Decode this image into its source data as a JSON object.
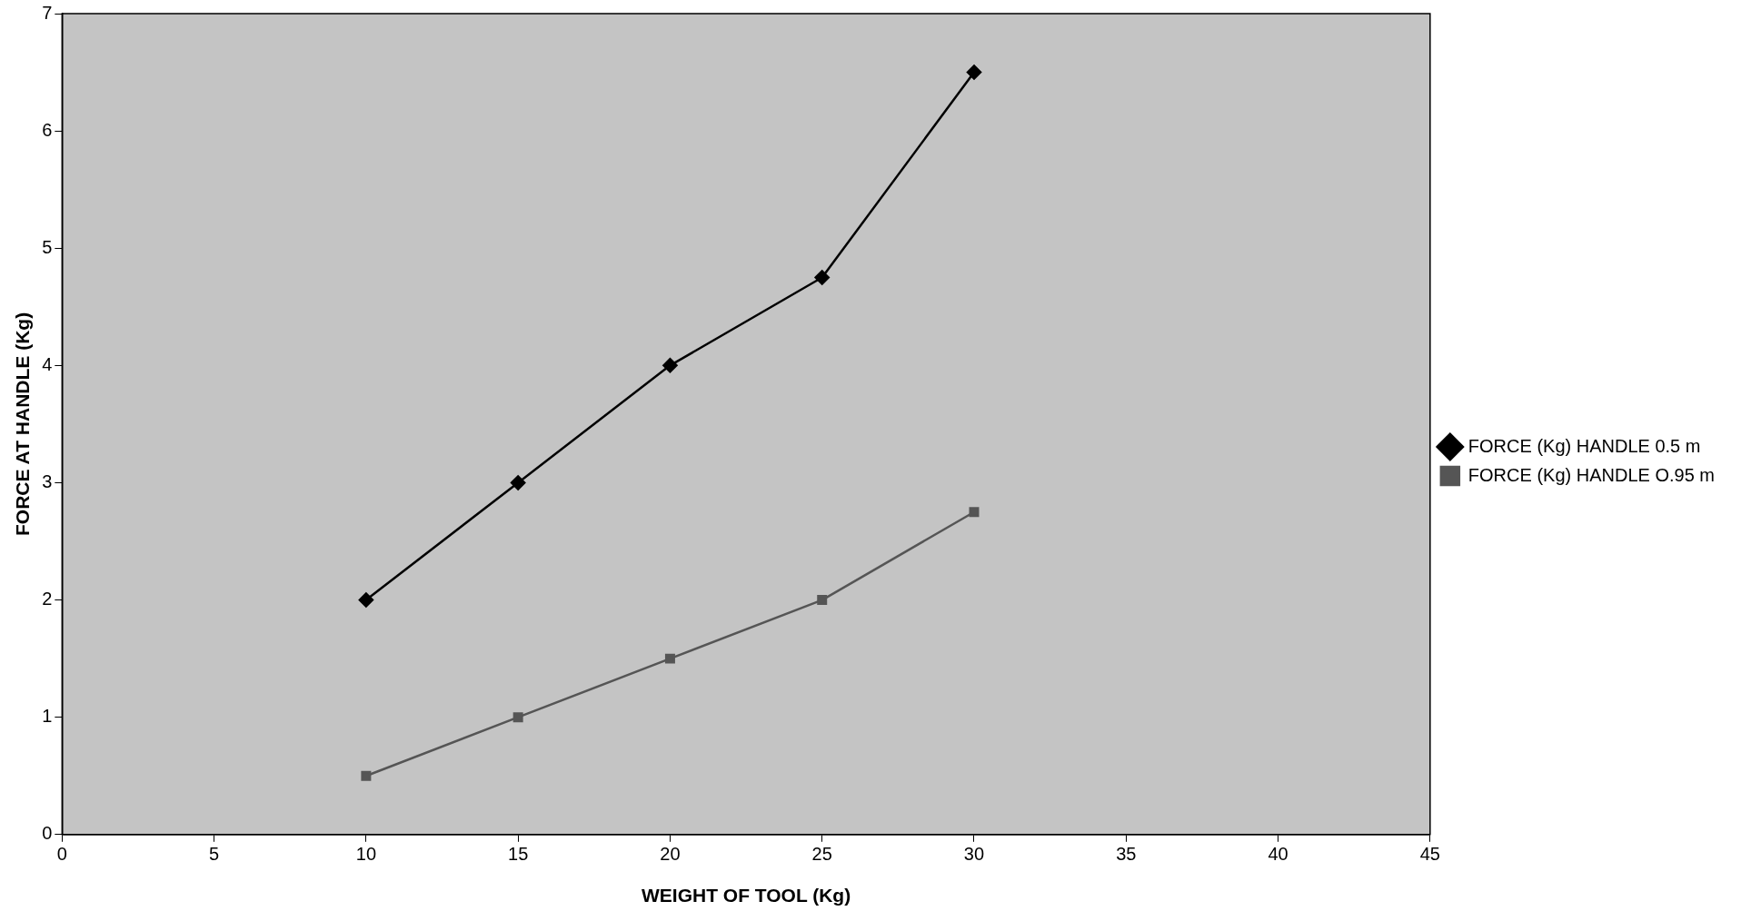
{
  "chart_data": {
    "type": "line",
    "xlabel": "WEIGHT OF TOOL (Kg)",
    "ylabel": "FORCE AT HANDLE (Kg)",
    "x": [
      10,
      15,
      20,
      25,
      30
    ],
    "series": [
      {
        "name": "FORCE (Kg) HANDLE 0.5 m",
        "color": "#000000",
        "marker": "diamond",
        "values": [
          2,
          3,
          4,
          4.75,
          6.5
        ]
      },
      {
        "name": "FORCE (Kg) HANDLE O.95 m",
        "color": "#555555",
        "marker": "square",
        "values": [
          0.5,
          1,
          1.5,
          2,
          2.75
        ]
      }
    ],
    "xlim": [
      0,
      45
    ],
    "xticks": [
      0,
      5,
      10,
      15,
      20,
      25,
      30,
      35,
      40,
      45
    ],
    "ylim": [
      0,
      7
    ],
    "yticks": [
      0,
      1,
      2,
      3,
      4,
      5,
      6,
      7
    ],
    "grid": false,
    "legend": "right",
    "line_style": "solid"
  }
}
